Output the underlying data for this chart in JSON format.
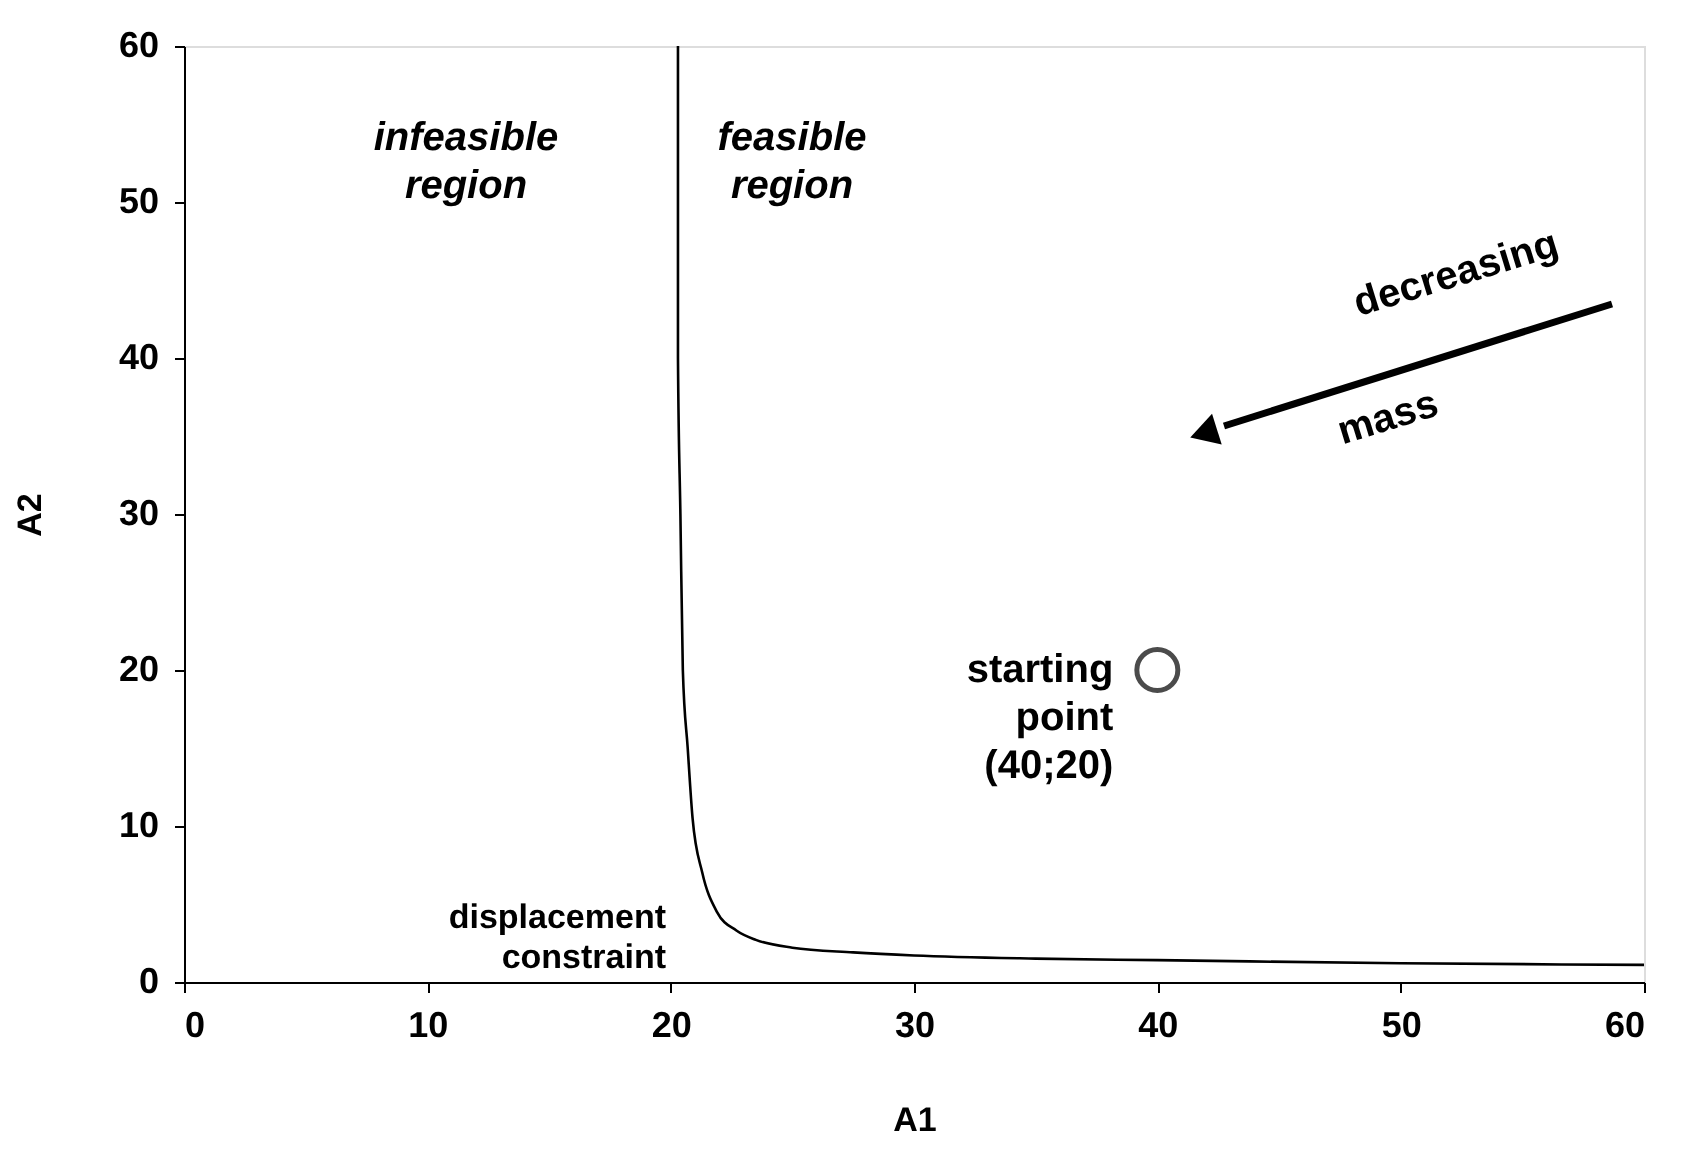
{
  "chart_data": {
    "type": "line",
    "xlabel": "A1",
    "ylabel": "A2",
    "xlim": [
      0,
      60
    ],
    "ylim": [
      0,
      60
    ],
    "xticks": [
      0,
      10,
      20,
      30,
      40,
      50,
      60
    ],
    "yticks": [
      0,
      10,
      20,
      30,
      40,
      50,
      60
    ],
    "grid": false,
    "series": [
      {
        "color": "#000000",
        "x": [
          20.3,
          20.3,
          20.4,
          20.5,
          20.7,
          20.9,
          21.3,
          21.9,
          22.7,
          23.5,
          25,
          27.5,
          30,
          35,
          40,
          50,
          60
        ],
        "values": [
          60,
          40,
          30,
          20,
          15,
          10.5,
          7,
          4.5,
          3.3,
          2.7,
          2.2,
          1.9,
          1.7,
          1.5,
          1.4,
          1.2,
          1.1
        ]
      },
      {
        "type": "scatter",
        "marker": "circle",
        "color": "#000000",
        "x": [
          40
        ],
        "values": [
          20
        ]
      }
    ],
    "annotations": [
      "infeasible\nregion",
      "feasible\nregion",
      "decreasing",
      "mass",
      "displacement\nconstraint",
      {
        "text": "starting\npoint\n(40;20)",
        "x": 40,
        "y": 20
      }
    ]
  }
}
